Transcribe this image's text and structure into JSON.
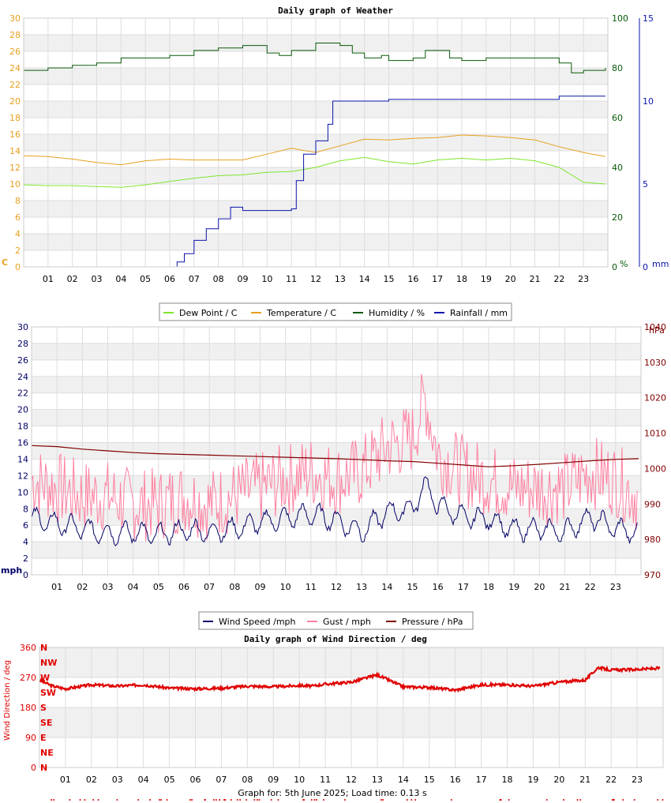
{
  "colors": {
    "dew": "#7fe62e",
    "temp": "#e8a020",
    "hum": "#0a5a0a",
    "rain": "#0a14a8",
    "wind": "#000066",
    "gust": "#ff80a0",
    "pres": "#800000",
    "dir": "#e00000",
    "left_axis_temp": "#e8a020",
    "grid_band": "#f0f0f0"
  },
  "chart_data": [
    {
      "type": "line",
      "title": "Daily graph of Weather",
      "xlabel": "",
      "x_ticks": [
        "01",
        "02",
        "03",
        "04",
        "05",
        "06",
        "07",
        "08",
        "09",
        "10",
        "11",
        "12",
        "13",
        "14",
        "15",
        "16",
        "17",
        "18",
        "19",
        "20",
        "21",
        "22",
        "23"
      ],
      "y_left": {
        "ylabel": "C",
        "ticks": [
          0,
          2,
          4,
          6,
          8,
          10,
          12,
          14,
          16,
          18,
          20,
          22,
          24,
          26,
          28,
          30
        ],
        "ylim": [
          0,
          30
        ]
      },
      "y_right1": {
        "ylabel": "%",
        "ticks": [
          0,
          20,
          40,
          60,
          80,
          100
        ],
        "ylim": [
          0,
          100
        ]
      },
      "y_right2": {
        "ylabel": "mm",
        "ticks": [
          0,
          5,
          10,
          15
        ],
        "ylim": [
          0,
          15
        ]
      },
      "legend": [
        "Dew Point / C",
        "Temperature / C",
        "Humidity / %",
        "Rainfall / mm"
      ],
      "series": [
        {
          "name": "Dew Point / C",
          "axis": "left",
          "x": [
            0,
            1,
            2,
            3,
            4,
            5,
            6,
            7,
            8,
            9,
            10,
            11,
            12,
            13,
            14,
            15,
            16,
            17,
            18,
            19,
            20,
            21,
            22,
            23,
            23.9
          ],
          "y": [
            9.9,
            9.8,
            9.8,
            9.7,
            9.6,
            9.9,
            10.3,
            10.7,
            11.0,
            11.1,
            11.4,
            11.5,
            12.0,
            12.8,
            13.2,
            12.7,
            12.4,
            12.9,
            13.1,
            12.9,
            13.1,
            12.8,
            12.0,
            10.2,
            10.0
          ]
        },
        {
          "name": "Temperature / C",
          "axis": "left",
          "x": [
            0,
            1,
            2,
            3,
            4,
            5,
            6,
            7,
            8,
            9,
            10,
            11,
            12,
            13,
            14,
            15,
            16,
            17,
            18,
            19,
            20,
            21,
            22,
            23,
            23.9
          ],
          "y": [
            13.4,
            13.3,
            13.0,
            12.6,
            12.3,
            12.8,
            13.0,
            12.9,
            12.9,
            12.9,
            13.6,
            14.3,
            13.8,
            14.6,
            15.4,
            15.3,
            15.5,
            15.6,
            15.9,
            15.8,
            15.6,
            15.3,
            14.5,
            13.8,
            13.3
          ]
        },
        {
          "name": "Humidity / %",
          "axis": "right1",
          "x": [
            0,
            1,
            2,
            3,
            4,
            5,
            6,
            7,
            8,
            9,
            10,
            10.5,
            11,
            12,
            13,
            13.5,
            14,
            14.7,
            15,
            16,
            16.5,
            17,
            17.5,
            18,
            19,
            20,
            21,
            22,
            22.5,
            23,
            23.9
          ],
          "y": [
            79,
            80,
            81,
            82,
            84,
            84,
            85,
            87,
            88,
            89,
            86,
            85,
            87,
            90,
            89,
            86,
            84,
            85,
            83,
            84,
            87,
            87,
            84,
            83,
            84,
            84,
            84,
            82,
            78,
            79,
            80
          ]
        },
        {
          "name": "Rainfall / mm",
          "axis": "right2",
          "x": [
            0,
            1,
            2,
            3,
            4,
            5,
            6,
            6.3,
            6.6,
            7,
            7.5,
            8,
            8.5,
            9,
            9.5,
            10,
            10.5,
            11,
            11.2,
            11.5,
            12,
            12.5,
            12.7,
            13,
            14,
            15,
            16,
            17,
            18,
            19,
            20,
            21,
            22,
            23,
            23.9
          ],
          "y": [
            0,
            0,
            0,
            0,
            0,
            0,
            0,
            0.3,
            0.8,
            1.6,
            2.3,
            2.9,
            3.6,
            3.4,
            3.4,
            3.4,
            3.4,
            3.5,
            5.2,
            6.8,
            7.6,
            8.6,
            10.0,
            10.0,
            10.0,
            10.1,
            10.1,
            10.1,
            10.1,
            10.1,
            10.1,
            10.1,
            10.3,
            10.3,
            10.3
          ]
        }
      ]
    },
    {
      "type": "line",
      "title": "",
      "x_ticks": [
        "01",
        "02",
        "03",
        "04",
        "05",
        "06",
        "07",
        "08",
        "09",
        "10",
        "11",
        "12",
        "13",
        "14",
        "15",
        "16",
        "17",
        "18",
        "19",
        "20",
        "21",
        "22",
        "23"
      ],
      "y_left": {
        "ylabel": "mph",
        "ticks": [
          0,
          2,
          4,
          6,
          8,
          10,
          12,
          14,
          16,
          18,
          20,
          22,
          24,
          26,
          28,
          30
        ],
        "ylim": [
          0,
          30
        ]
      },
      "y_right": {
        "ylabel": "hPa",
        "ticks": [
          970,
          980,
          990,
          1000,
          1010,
          1020,
          1030,
          1040
        ],
        "ylim": [
          970,
          1040
        ]
      },
      "legend": [
        "Wind Speed /mph",
        "Gust / mph",
        "Pressure / hPa"
      ],
      "series": [
        {
          "name": "Wind Speed /mph",
          "axis": "left",
          "x": [
            0,
            1,
            2,
            3,
            4,
            5,
            6,
            7,
            8,
            9,
            10,
            11,
            12,
            13,
            14,
            15,
            15.5,
            16,
            17,
            18,
            19,
            20,
            21,
            22,
            23,
            23.9
          ],
          "y": [
            6.8,
            6.2,
            5.6,
            5.0,
            5.2,
            4.8,
            5.4,
            5.2,
            5.6,
            6.4,
            6.8,
            7.4,
            6.6,
            5.2,
            7.6,
            8.0,
            11.0,
            8.4,
            7.0,
            6.8,
            5.4,
            5.6,
            5.2,
            7.0,
            5.6,
            5.0
          ]
        },
        {
          "name": "Gust / mph",
          "axis": "left",
          "x": [
            0,
            1,
            2,
            3,
            4,
            5,
            6,
            7,
            8,
            9,
            10,
            11,
            12,
            13,
            14,
            15,
            15.5,
            16,
            17,
            18,
            19,
            20,
            21,
            22,
            23,
            23.9
          ],
          "y": [
            12,
            11,
            10,
            10,
            9,
            9,
            10,
            9,
            10,
            11,
            12,
            13,
            12,
            13,
            16,
            17,
            22,
            15,
            13,
            12,
            11,
            11,
            11,
            13,
            12,
            10
          ]
        },
        {
          "name": "Pressure / hPa",
          "axis": "right",
          "x": [
            0,
            1,
            2,
            3,
            4,
            5,
            6,
            7,
            8,
            9,
            10,
            11,
            12,
            13,
            14,
            15,
            16,
            17,
            18,
            19,
            20,
            21,
            22,
            23,
            23.9
          ],
          "y": [
            1006.5,
            1006.2,
            1005.5,
            1005.0,
            1004.5,
            1004.2,
            1004.0,
            1003.8,
            1003.6,
            1003.4,
            1003.2,
            1003.0,
            1002.8,
            1002.5,
            1002.2,
            1002.0,
            1001.5,
            1001.0,
            1000.5,
            1000.8,
            1001.2,
            1001.7,
            1002.2,
            1002.6,
            1002.8
          ]
        }
      ]
    },
    {
      "type": "scatter",
      "title": "Daily graph of Wind Direction / deg",
      "x_ticks": [
        "01",
        "02",
        "03",
        "04",
        "05",
        "06",
        "07",
        "08",
        "09",
        "10",
        "11",
        "12",
        "13",
        "14",
        "15",
        "16",
        "17",
        "18",
        "19",
        "20",
        "21",
        "22",
        "23"
      ],
      "y_left": {
        "ylabel": "Wind Direction / deg",
        "ticks": [
          0,
          90,
          180,
          270,
          360
        ],
        "ylim": [
          0,
          360
        ]
      },
      "compass": [
        "N",
        "NE",
        "E",
        "SE",
        "S",
        "SW",
        "W",
        "NW",
        "N"
      ],
      "series": [
        {
          "name": "",
          "axis": "left",
          "x": [
            0,
            0.5,
            1,
            2,
            3,
            4,
            5,
            6,
            7,
            8,
            9,
            10,
            10.5,
            11,
            12,
            13,
            13.5,
            14,
            15,
            16,
            17,
            18,
            19,
            20,
            21,
            21.5,
            22,
            23,
            23.9
          ],
          "y": [
            262,
            244,
            236,
            248,
            244,
            248,
            238,
            236,
            238,
            244,
            242,
            246,
            244,
            250,
            256,
            278,
            260,
            242,
            240,
            232,
            248,
            248,
            244,
            256,
            262,
            300,
            292,
            294,
            298
          ]
        }
      ]
    }
  ],
  "footer": {
    "text": "Graph for: 5th June 2025; Load time: 0.13 s"
  }
}
